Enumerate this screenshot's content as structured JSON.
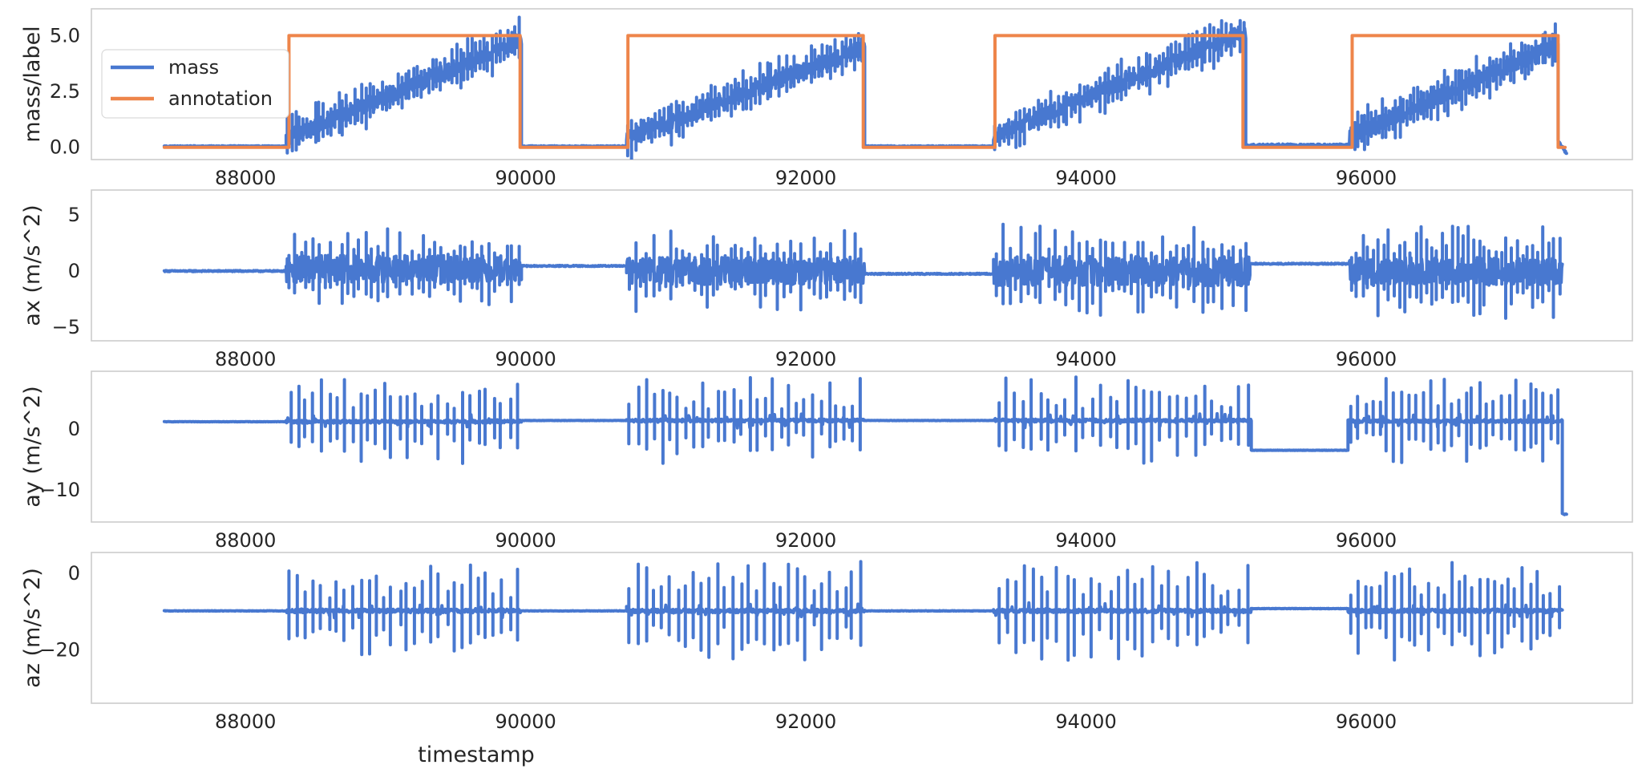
{
  "chart_data": [
    {
      "type": "line",
      "ylabel": "mass/label",
      "xlabel": "",
      "xlim": [
        86900,
        97900
      ],
      "ylim": [
        -0.55,
        6.2
      ],
      "xticks": [
        88000,
        90000,
        92000,
        94000,
        96000
      ],
      "yticks": [
        0.0,
        2.5,
        5.0
      ],
      "ytick_labels": [
        "0.0",
        "2.5",
        "5.0"
      ],
      "grid": false,
      "legend": {
        "placement": "upper-left",
        "entries": [
          "mass",
          "annotation"
        ]
      },
      "series": [
        {
          "name": "mass",
          "color": "#4878d0",
          "signal": "noisy_ramp",
          "segments": [
            {
              "x_start": 87420,
              "x_end": 88290,
              "start": 0.05,
              "end": 0.05,
              "noise": 0.02
            },
            {
              "x_start": 88290,
              "x_end": 89970,
              "start": 0.4,
              "end": 4.8,
              "noise": 0.35,
              "spikes": 60,
              "spike_amp": 0.9
            },
            {
              "x_start": 89970,
              "x_end": 90720,
              "start": 0.05,
              "end": 0.05,
              "noise": 0.02
            },
            {
              "x_start": 90720,
              "x_end": 92420,
              "start": 0.4,
              "end": 4.5,
              "noise": 0.35,
              "spikes": 60,
              "spike_amp": 0.9
            },
            {
              "x_start": 92420,
              "x_end": 93340,
              "start": 0.05,
              "end": 0.05,
              "noise": 0.02
            },
            {
              "x_start": 93340,
              "x_end": 95140,
              "start": 0.5,
              "end": 5.2,
              "noise": 0.35,
              "spikes": 60,
              "spike_amp": 0.9
            },
            {
              "x_start": 95140,
              "x_end": 95880,
              "start": 0.1,
              "end": 0.1,
              "noise": 0.05
            },
            {
              "x_start": 95880,
              "x_end": 97370,
              "start": 0.5,
              "end": 4.6,
              "noise": 0.35,
              "spikes": 60,
              "spike_amp": 0.9
            },
            {
              "x_start": 97370,
              "x_end": 97430,
              "start": 0.3,
              "end": -0.3,
              "noise": 0.05
            }
          ]
        },
        {
          "name": "annotation",
          "color": "#ee854a",
          "signal": "step",
          "points": [
            [
              87420,
              0
            ],
            [
              88310,
              0
            ],
            [
              88310,
              5
            ],
            [
              89960,
              5
            ],
            [
              89960,
              0
            ],
            [
              90730,
              0
            ],
            [
              90730,
              5
            ],
            [
              92410,
              5
            ],
            [
              92410,
              0
            ],
            [
              93350,
              0
            ],
            [
              93350,
              5
            ],
            [
              95120,
              5
            ],
            [
              95120,
              0
            ],
            [
              95900,
              0
            ],
            [
              95900,
              5
            ],
            [
              97370,
              5
            ],
            [
              97370,
              0
            ],
            [
              97420,
              0
            ]
          ]
        }
      ]
    },
    {
      "type": "line",
      "ylabel": "ax (m/s^2)",
      "xlabel": "",
      "xlim": [
        86900,
        97900
      ],
      "ylim": [
        -6.2,
        7.2
      ],
      "xticks": [
        88000,
        90000,
        92000,
        94000,
        96000
      ],
      "yticks": [
        -5,
        0,
        5
      ],
      "ytick_labels": [
        "−5",
        "0",
        "5"
      ],
      "grid": false,
      "series": [
        {
          "name": "",
          "color": "#4878d0",
          "signal": "noise",
          "segments": [
            {
              "x_start": 87420,
              "x_end": 88290,
              "base": 0.0,
              "noise": 0.05
            },
            {
              "x_start": 88290,
              "x_end": 89970,
              "base": 0.2,
              "noise": 1.2,
              "spikes": 40,
              "spike_amp": 3.0
            },
            {
              "x_start": 89970,
              "x_end": 90720,
              "base": 0.45,
              "noise": 0.05
            },
            {
              "x_start": 90720,
              "x_end": 92420,
              "base": 0.0,
              "noise": 1.2,
              "spikes": 40,
              "spike_amp": 3.0
            },
            {
              "x_start": 92420,
              "x_end": 93340,
              "base": -0.25,
              "noise": 0.05
            },
            {
              "x_start": 93340,
              "x_end": 95170,
              "base": 0.0,
              "noise": 1.3,
              "spikes": 40,
              "spike_amp": 3.5
            },
            {
              "x_start": 95170,
              "x_end": 95880,
              "base": 0.65,
              "noise": 0.05
            },
            {
              "x_start": 95880,
              "x_end": 97400,
              "base": 0.0,
              "noise": 1.2,
              "spikes": 40,
              "spike_amp": 3.5
            }
          ]
        }
      ]
    },
    {
      "type": "line",
      "ylabel": "ay (m/s^2)",
      "xlabel": "",
      "xlim": [
        86900,
        97900
      ],
      "ylim": [
        -15.3,
        9.5
      ],
      "xticks": [
        88000,
        90000,
        92000,
        94000,
        96000
      ],
      "yticks": [
        -10,
        0
      ],
      "ytick_labels": [
        "−10",
        "0"
      ],
      "grid": false,
      "series": [
        {
          "name": "",
          "color": "#4878d0",
          "signal": "bursts",
          "segments": [
            {
              "x_start": 87420,
              "x_end": 88290,
              "base": 1.2,
              "noise": 0.05
            },
            {
              "x_start": 88290,
              "x_end": 89970,
              "base": 1.2,
              "noise": 0.4,
              "bursts": 30,
              "burst_amp": 6.0
            },
            {
              "x_start": 89970,
              "x_end": 90720,
              "base": 1.4,
              "noise": 0.05
            },
            {
              "x_start": 90720,
              "x_end": 92420,
              "base": 1.4,
              "noise": 0.4,
              "bursts": 30,
              "burst_amp": 6.0
            },
            {
              "x_start": 92420,
              "x_end": 93340,
              "base": 1.4,
              "noise": 0.05
            },
            {
              "x_start": 93340,
              "x_end": 95180,
              "base": 1.4,
              "noise": 0.4,
              "bursts": 30,
              "burst_amp": 6.0
            },
            {
              "x_start": 95180,
              "x_end": 95870,
              "base": -3.5,
              "noise": 0.05
            },
            {
              "x_start": 95870,
              "x_end": 97400,
              "base": 1.3,
              "noise": 0.4,
              "bursts": 30,
              "burst_amp": 6.0
            },
            {
              "x_start": 97400,
              "x_end": 97430,
              "base": -14.0,
              "noise": 0.2
            }
          ]
        }
      ]
    },
    {
      "type": "line",
      "ylabel": "az (m/s^2)",
      "xlabel": "timestamp",
      "xlim": [
        86900,
        97900
      ],
      "ylim": [
        -34,
        5.5
      ],
      "xticks": [
        88000,
        90000,
        92000,
        94000,
        96000
      ],
      "yticks": [
        -20,
        0
      ],
      "ytick_labels": [
        "−20",
        "0"
      ],
      "grid": false,
      "series": [
        {
          "name": "",
          "color": "#4878d0",
          "signal": "bursts",
          "segments": [
            {
              "x_start": 87420,
              "x_end": 88290,
              "base": -9.8,
              "noise": 0.1
            },
            {
              "x_start": 88290,
              "x_end": 89970,
              "base": -9.8,
              "noise": 0.8,
              "bursts": 30,
              "burst_amp": 10.0
            },
            {
              "x_start": 89970,
              "x_end": 90720,
              "base": -9.8,
              "noise": 0.1
            },
            {
              "x_start": 90720,
              "x_end": 92420,
              "base": -9.8,
              "noise": 0.8,
              "bursts": 30,
              "burst_amp": 11.0
            },
            {
              "x_start": 92420,
              "x_end": 93340,
              "base": -9.8,
              "noise": 0.1
            },
            {
              "x_start": 93340,
              "x_end": 95180,
              "base": -9.8,
              "noise": 0.8,
              "bursts": 30,
              "burst_amp": 11.0
            },
            {
              "x_start": 95180,
              "x_end": 95870,
              "base": -9.2,
              "noise": 0.1
            },
            {
              "x_start": 95870,
              "x_end": 97400,
              "base": -9.8,
              "noise": 0.8,
              "bursts": 30,
              "burst_amp": 11.0
            }
          ]
        }
      ]
    }
  ]
}
